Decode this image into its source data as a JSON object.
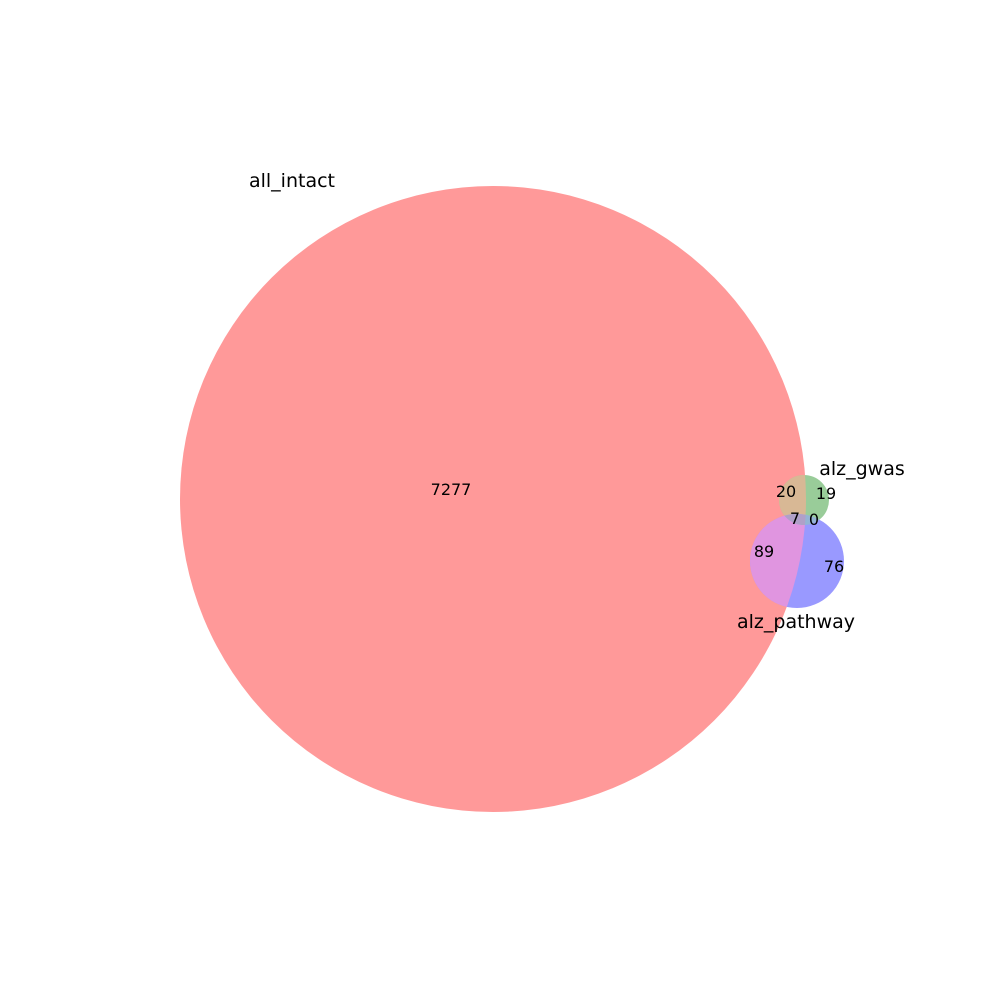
{
  "diagram": {
    "type": "venn3",
    "sets": [
      {
        "key": "all_intact",
        "label": "all_intact",
        "color": "#ff9999"
      },
      {
        "key": "alz_gwas",
        "label": "alz_gwas",
        "color": "#99cc99"
      },
      {
        "key": "alz_pathway",
        "label": "alz_pathway",
        "color": "#9999ff"
      }
    ],
    "regions": {
      "all_intact_only": "7277",
      "alz_gwas_only": "19",
      "alz_pathway_only": "76",
      "all_intact_and_alz_gwas": "20",
      "all_intact_and_alz_pathway": "89",
      "alz_gwas_and_alz_pathway": "0",
      "all_three": "7"
    },
    "overlap_colors": {
      "all_intact_and_alz_gwas": "#d8b895",
      "all_intact_and_alz_pathway": "#e095e0",
      "alz_gwas_and_alz_pathway": "#94b4d4",
      "all_three": "#b0a0c8"
    }
  }
}
